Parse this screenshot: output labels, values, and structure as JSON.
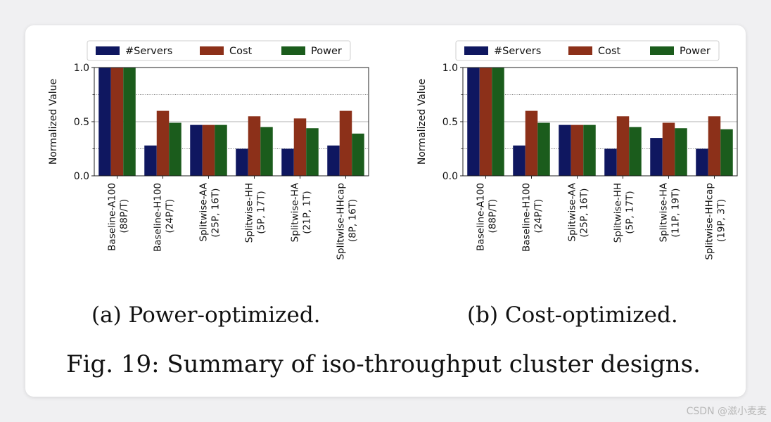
{
  "colors": {
    "#Servers": "#0f1760",
    "Cost": "#8c3019",
    "Power": "#1b5c1c"
  },
  "legend": [
    "#Servers",
    "Cost",
    "Power"
  ],
  "chart_data": [
    {
      "type": "bar",
      "ylabel": "Normalized Value",
      "ylim": [
        0,
        1.0
      ],
      "yticks": [
        "0.0",
        "0.5",
        "1.0"
      ],
      "categories": [
        [
          "Baseline-A100",
          "(88P/T)"
        ],
        [
          "Baseline-H100",
          "(24P/T)"
        ],
        [
          "Splitwise-AA",
          "(25P, 16T)"
        ],
        [
          "Splitwise-HH",
          "(5P, 17T)"
        ],
        [
          "Splitwise-HA",
          "(21P, 1T)"
        ],
        [
          "Splitwise-HHcap",
          "(8P, 16T)"
        ]
      ],
      "series": [
        {
          "name": "#Servers",
          "values": [
            1.0,
            0.28,
            0.47,
            0.25,
            0.25,
            0.28
          ]
        },
        {
          "name": "Cost",
          "values": [
            1.0,
            0.6,
            0.47,
            0.55,
            0.53,
            0.6
          ]
        },
        {
          "name": "Power",
          "values": [
            1.0,
            0.49,
            0.47,
            0.45,
            0.44,
            0.39
          ]
        }
      ]
    },
    {
      "type": "bar",
      "ylabel": "Normalized Value",
      "ylim": [
        0,
        1.0
      ],
      "yticks": [
        "0.0",
        "0.5",
        "1.0"
      ],
      "categories": [
        [
          "Baseline-A100",
          "(88P/T)"
        ],
        [
          "Baseline-H100",
          "(24P/T)"
        ],
        [
          "Splitwise-AA",
          "(25P, 16T)"
        ],
        [
          "Splitwise-HH",
          "(5P, 17T)"
        ],
        [
          "Splitwise-HA",
          "(11P, 19T)"
        ],
        [
          "Splitwise-HHcap",
          "(19P, 3T)"
        ]
      ],
      "series": [
        {
          "name": "#Servers",
          "values": [
            1.0,
            0.28,
            0.47,
            0.25,
            0.35,
            0.25
          ]
        },
        {
          "name": "Cost",
          "values": [
            1.0,
            0.6,
            0.47,
            0.55,
            0.49,
            0.55
          ]
        },
        {
          "name": "Power",
          "values": [
            1.0,
            0.49,
            0.47,
            0.45,
            0.44,
            0.43
          ]
        }
      ]
    }
  ],
  "subcaptions": [
    "(a) Power-optimized.",
    "(b) Cost-optimized."
  ],
  "figure_caption": "Fig. 19: Summary of iso-throughput cluster designs.",
  "watermark": "CSDN @滋小麦麦"
}
